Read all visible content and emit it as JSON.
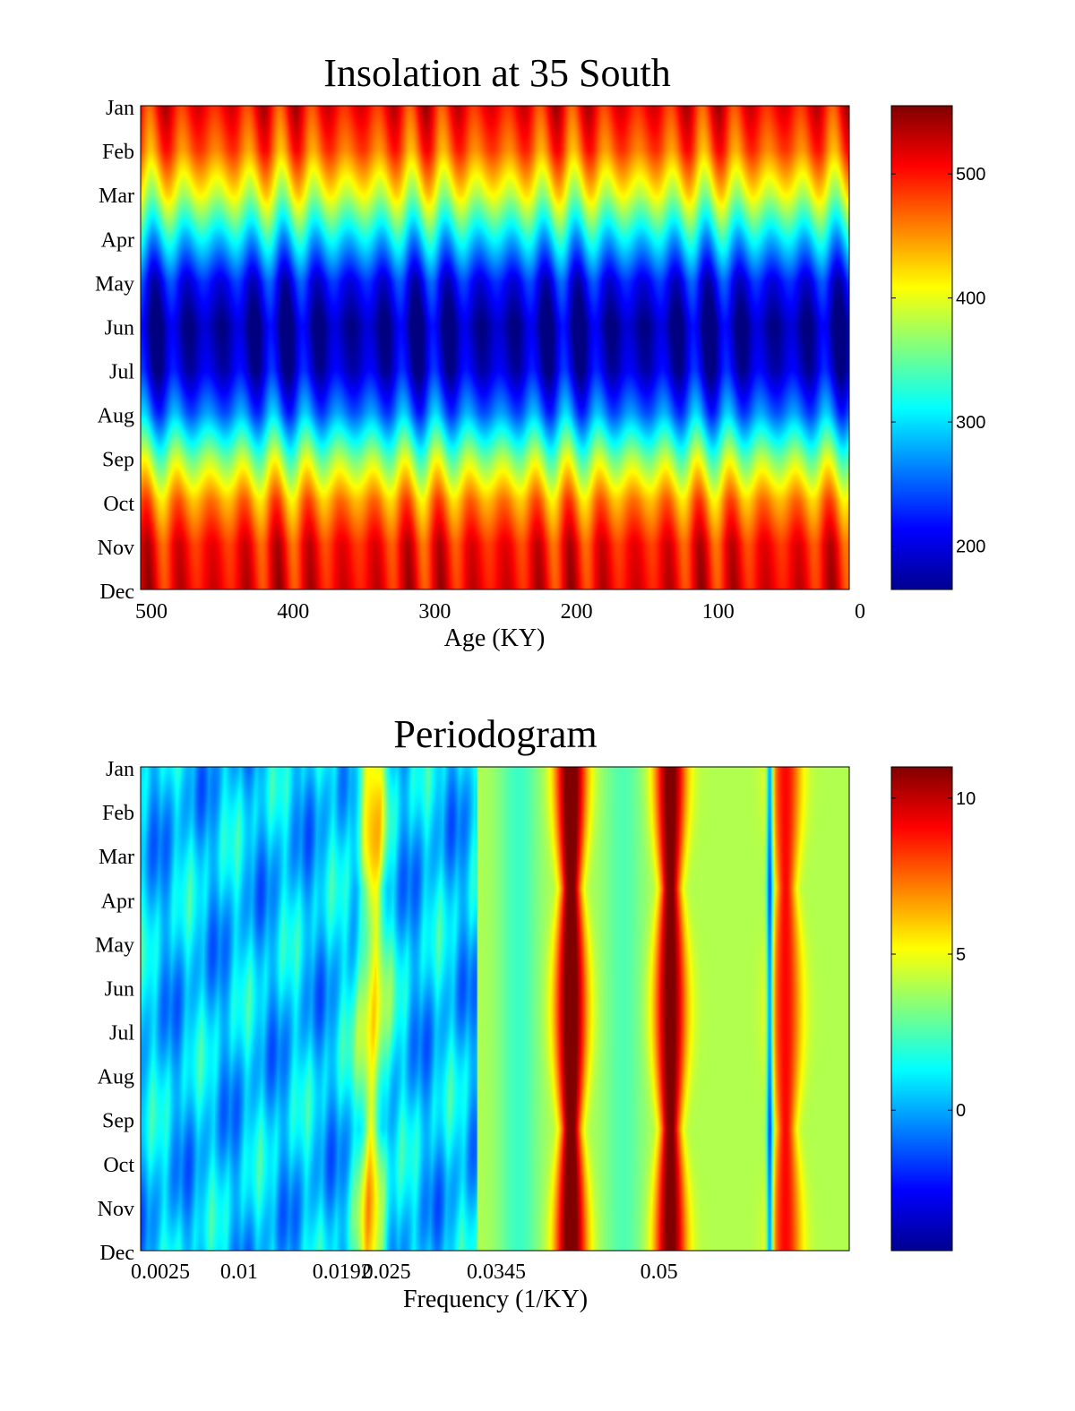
{
  "chart_data": [
    {
      "type": "heatmap",
      "title": "Insolation at 35 South",
      "xlabel": "Age (KY)",
      "ylabel": "",
      "xlim": [
        500,
        0
      ],
      "x_ticks": [
        "500",
        "400",
        "300",
        "200",
        "100",
        "0"
      ],
      "y_categories": [
        "Jan",
        "Feb",
        "Mar",
        "Apr",
        "May",
        "Jun",
        "Jul",
        "Aug",
        "Sep",
        "Oct",
        "Nov",
        "Dec"
      ],
      "colormap": "jet",
      "colorbar": {
        "min": 165,
        "max": 555,
        "ticks": [
          "500",
          "400",
          "300",
          "200"
        ]
      },
      "monthly_mean_values": [
        505,
        470,
        395,
        300,
        215,
        180,
        195,
        260,
        365,
        450,
        500,
        510
      ],
      "precession_period_ky": 23
    },
    {
      "type": "heatmap",
      "title": "Periodogram",
      "xlabel": "Frequency (1/KY)",
      "ylabel": "",
      "xlim": [
        0.0025,
        0.07
      ],
      "x_ticks": [
        "0.0025",
        "0.01",
        "0.0192",
        "0.025",
        "0.0345",
        "0.05"
      ],
      "y_categories": [
        "Jan",
        "Feb",
        "Mar",
        "Apr",
        "May",
        "Jun",
        "Jul",
        "Aug",
        "Sep",
        "Oct",
        "Nov",
        "Dec"
      ],
      "colormap": "jet",
      "colorbar": {
        "min": -4.5,
        "max": 11,
        "ticks": [
          "10",
          "5",
          "0"
        ]
      },
      "peaks": [
        {
          "frequency": 0.0245,
          "value": 8
        },
        {
          "frequency": 0.0435,
          "value": 11
        },
        {
          "frequency": 0.053,
          "value": 10.5
        },
        {
          "frequency": 0.064,
          "value": 8
        }
      ]
    }
  ]
}
